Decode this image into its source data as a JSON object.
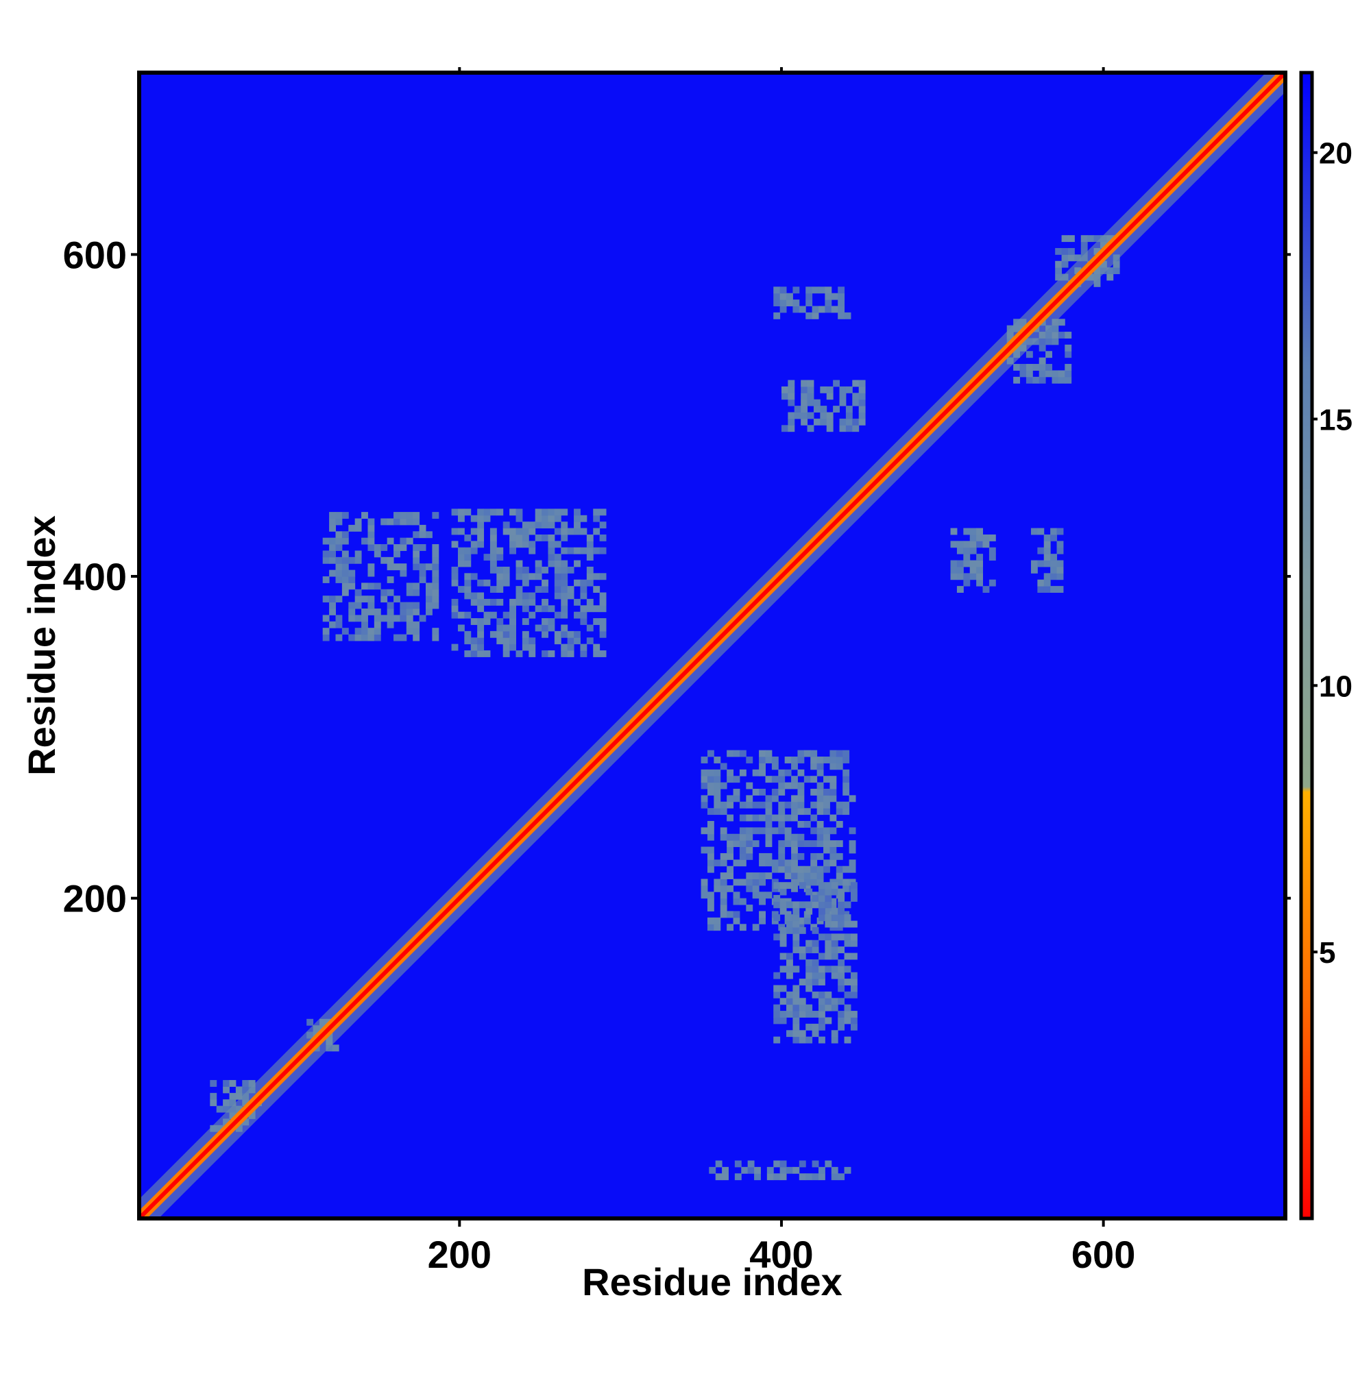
{
  "chart_data": {
    "type": "heatmap",
    "title": "",
    "xlabel": "Residue index",
    "ylabel": "Residue index",
    "xlim": [
      1,
      713
    ],
    "ylim": [
      1,
      713
    ],
    "xticks": [
      200,
      400,
      600
    ],
    "yticks": [
      200,
      400,
      600
    ],
    "grid": false,
    "colorbar": {
      "min": 0,
      "max": 21.5,
      "ticks": [
        5,
        10,
        15,
        20
      ],
      "stops": [
        {
          "value": 0,
          "color": "#ff0000"
        },
        {
          "value": 4,
          "color": "#ff6a00"
        },
        {
          "value": 8,
          "color": "#ffb000"
        },
        {
          "value": 8.1,
          "color": "#8fa88a"
        },
        {
          "value": 12,
          "color": "#7f9aa0"
        },
        {
          "value": 16,
          "color": "#5a7fb5"
        },
        {
          "value": 21.5,
          "color": "#0000ff"
        }
      ]
    },
    "diagonal_value": 0,
    "near_diagonal_value": 5,
    "background_value": 21,
    "contact_value": 14,
    "contact_regions": [
      {
        "x": [
          115,
          185
        ],
        "y": [
          360,
          440
        ]
      },
      {
        "x": [
          195,
          290
        ],
        "y": [
          350,
          440
        ]
      },
      {
        "x": [
          350,
          445
        ],
        "y": [
          180,
          290
        ]
      },
      {
        "x": [
          395,
          445
        ],
        "y": [
          110,
          210
        ]
      },
      {
        "x": [
          400,
          450
        ],
        "y": [
          490,
          520
        ]
      },
      {
        "x": [
          395,
          440
        ],
        "y": [
          560,
          580
        ]
      },
      {
        "x": [
          505,
          530
        ],
        "y": [
          390,
          430
        ]
      },
      {
        "x": [
          555,
          575
        ],
        "y": [
          390,
          430
        ]
      },
      {
        "x": [
          355,
          440
        ],
        "y": [
          25,
          35
        ]
      },
      {
        "x": [
          570,
          610
        ],
        "y": [
          580,
          610
        ]
      },
      {
        "x": [
          540,
          580
        ],
        "y": [
          520,
          560
        ]
      },
      {
        "x": [
          45,
          75
        ],
        "y": [
          55,
          85
        ]
      },
      {
        "x": [
          105,
          125
        ],
        "y": [
          105,
          125
        ]
      }
    ]
  }
}
